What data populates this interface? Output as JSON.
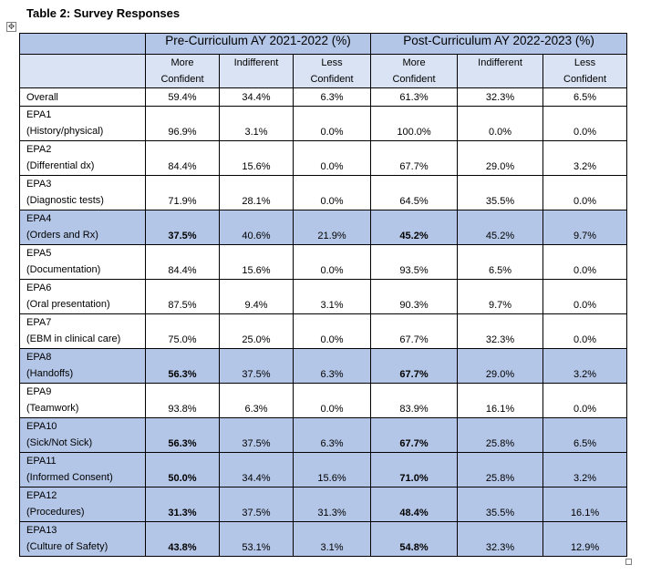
{
  "caption": "Table 2:  Survey Responses",
  "header": {
    "pre_period": "Pre-Curriculum AY 2021-2022 (%)",
    "post_period": "Post-Curriculum AY 2022-2023 (%)",
    "sub": [
      [
        "More",
        "Confident"
      ],
      [
        "Indifferent",
        ""
      ],
      [
        "Less",
        "Confident"
      ],
      [
        "More",
        "Confident"
      ],
      [
        "Indifferent",
        ""
      ],
      [
        "Less",
        "Confident"
      ]
    ]
  },
  "rows": [
    {
      "label1": "Overall",
      "label2": "",
      "highlight": false,
      "bold_cols": [],
      "values": [
        "59.4%",
        "34.4%",
        "6.3%",
        "61.3%",
        "32.3%",
        "6.5%"
      ]
    },
    {
      "label1": "EPA1",
      "label2": "(History/physical)",
      "highlight": false,
      "bold_cols": [],
      "values": [
        "96.9%",
        "3.1%",
        "0.0%",
        "100.0%",
        "0.0%",
        "0.0%"
      ]
    },
    {
      "label1": "EPA2",
      "label2": "(Differential dx)",
      "highlight": false,
      "bold_cols": [],
      "values": [
        "84.4%",
        "15.6%",
        "0.0%",
        "67.7%",
        "29.0%",
        "3.2%"
      ]
    },
    {
      "label1": "EPA3",
      "label2": "(Diagnostic tests)",
      "highlight": false,
      "bold_cols": [],
      "values": [
        "71.9%",
        "28.1%",
        "0.0%",
        "64.5%",
        "35.5%",
        "0.0%"
      ]
    },
    {
      "label1": "EPA4",
      "label2": "(Orders and Rx)",
      "highlight": true,
      "bold_cols": [
        0,
        3
      ],
      "values": [
        "37.5%",
        "40.6%",
        "21.9%",
        "45.2%",
        "45.2%",
        "9.7%"
      ]
    },
    {
      "label1": "EPA5",
      "label2": "(Documentation)",
      "highlight": false,
      "bold_cols": [],
      "values": [
        "84.4%",
        "15.6%",
        "0.0%",
        "93.5%",
        "6.5%",
        "0.0%"
      ]
    },
    {
      "label1": "EPA6",
      "label2": "(Oral presentation)",
      "highlight": false,
      "bold_cols": [],
      "values": [
        "87.5%",
        "9.4%",
        "3.1%",
        "90.3%",
        "9.7%",
        "0.0%"
      ]
    },
    {
      "label1": "EPA7",
      "label2": "(EBM in clinical care)",
      "highlight": false,
      "bold_cols": [],
      "values": [
        "75.0%",
        "25.0%",
        "0.0%",
        "67.7%",
        "32.3%",
        "0.0%"
      ]
    },
    {
      "label1": "EPA8",
      "label2": "(Handoffs)",
      "highlight": true,
      "bold_cols": [
        0,
        3
      ],
      "values": [
        "56.3%",
        "37.5%",
        "6.3%",
        "67.7%",
        "29.0%",
        "3.2%"
      ]
    },
    {
      "label1": "EPA9",
      "label2": "(Teamwork)",
      "highlight": false,
      "bold_cols": [],
      "values": [
        "93.8%",
        "6.3%",
        "0.0%",
        "83.9%",
        "16.1%",
        "0.0%"
      ]
    },
    {
      "label1": "EPA10",
      "label2": "(Sick/Not Sick)",
      "highlight": true,
      "bold_cols": [
        0,
        3
      ],
      "values": [
        "56.3%",
        "37.5%",
        "6.3%",
        "67.7%",
        "25.8%",
        "6.5%"
      ]
    },
    {
      "label1": "EPA11",
      "label2": "(Informed Consent)",
      "highlight": true,
      "bold_cols": [
        0,
        3
      ],
      "values": [
        "50.0%",
        "34.4%",
        "15.6%",
        "71.0%",
        "25.8%",
        "3.2%"
      ]
    },
    {
      "label1": "EPA12",
      "label2": "(Procedures)",
      "highlight": true,
      "bold_cols": [
        0,
        3
      ],
      "values": [
        "31.3%",
        "37.5%",
        "31.3%",
        "48.4%",
        "35.5%",
        "16.1%"
      ]
    },
    {
      "label1": "EPA13",
      "label2": "(Culture of Safety)",
      "highlight": true,
      "bold_cols": [
        0,
        3
      ],
      "values": [
        "43.8%",
        "53.1%",
        "3.1%",
        "54.8%",
        "32.3%",
        "12.9%"
      ]
    }
  ],
  "colors": {
    "highlight": "#b4c6e7",
    "subheader": "#dae3f3",
    "border": "#000000"
  }
}
